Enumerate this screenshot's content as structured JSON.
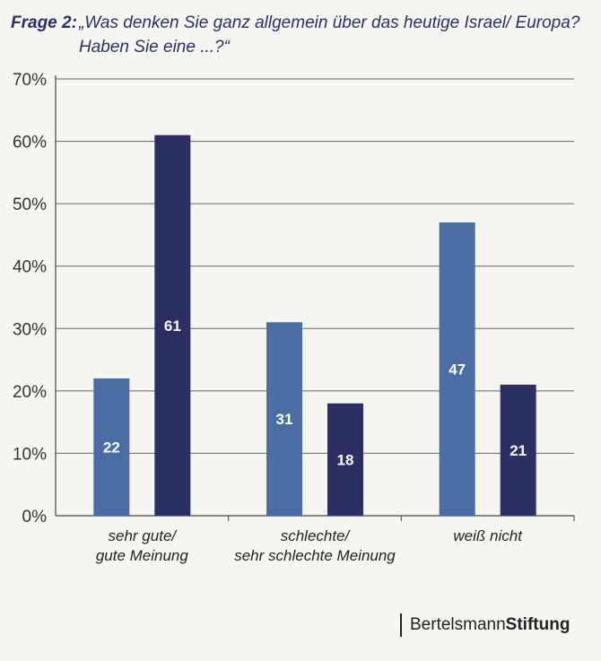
{
  "header": {
    "question_label": "Frage 2:",
    "question_text": "„Was denken Sie ganz allgemein über das heutige Israel/ Europa? Haben Sie eine ...?“"
  },
  "brand": {
    "part1": "Bertelsmann",
    "part2": "Stiftung"
  },
  "colors": {
    "series1": "#4a6ea3",
    "series2": "#2b2f63",
    "grid": "#666666"
  },
  "chart_data": {
    "type": "bar",
    "categories": [
      "sehr gute/\ngute Meinung",
      "schlechte/\nsehr schlechte Meinung",
      "weiß nicht"
    ],
    "series": [
      {
        "values": [
          22,
          31,
          47
        ]
      },
      {
        "values": [
          61,
          18,
          21
        ]
      }
    ],
    "ylim": [
      0,
      70
    ],
    "yticks": [
      0,
      10,
      20,
      30,
      40,
      50,
      60,
      70
    ],
    "ytick_labels": [
      "0%",
      "10%",
      "20%",
      "30%",
      "40%",
      "50%",
      "60%",
      "70%"
    ],
    "grid": true,
    "legend": "none"
  }
}
